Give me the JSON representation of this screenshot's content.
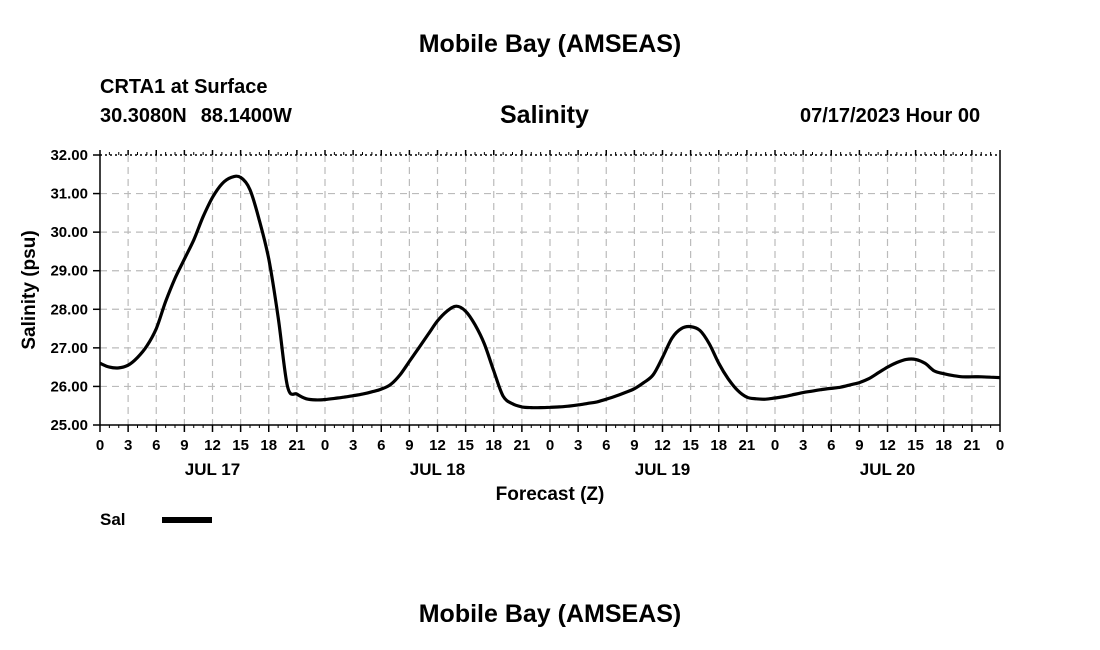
{
  "header": {
    "title": "Mobile Bay (AMSEAS)",
    "station": "CRTA1 at Surface",
    "latitude": "30.3080N",
    "longitude": "88.1400W",
    "run_time": "07/17/2023 Hour 00"
  },
  "footer": {
    "title": "Mobile Bay (AMSEAS)"
  },
  "chart_data": {
    "type": "line",
    "title": "Salinity",
    "xlabel": "Forecast (Z)",
    "ylabel": "Salinity (psu)",
    "ylim": [
      25.0,
      32.0
    ],
    "xlim": [
      0,
      96
    ],
    "y_ticks": [
      "25.00",
      "26.00",
      "27.00",
      "28.00",
      "29.00",
      "30.00",
      "31.00",
      "32.00"
    ],
    "x_tick_labels": [
      "0",
      "3",
      "6",
      "9",
      "12",
      "15",
      "18",
      "21",
      "0",
      "3",
      "6",
      "9",
      "12",
      "15",
      "18",
      "21",
      "0",
      "3",
      "6",
      "9",
      "12",
      "15",
      "18",
      "21",
      "0",
      "3",
      "6",
      "9",
      "12",
      "15",
      "18",
      "21",
      "0"
    ],
    "date_labels": [
      {
        "label": "JUL 17",
        "hour": 12
      },
      {
        "label": "JUL 18",
        "hour": 36
      },
      {
        "label": "JUL 19",
        "hour": 60
      },
      {
        "label": "JUL 20",
        "hour": 84
      }
    ],
    "grid": true,
    "legend_position": "bottom-left",
    "series": [
      {
        "name": "Sal",
        "color": "#000000",
        "x": [
          0,
          1,
          2,
          3,
          4,
          5,
          6,
          7,
          8,
          9,
          10,
          11,
          12,
          13,
          14,
          15,
          16,
          17,
          18,
          19,
          20,
          21,
          22,
          23,
          24,
          25,
          26,
          27,
          28,
          29,
          30,
          31,
          32,
          33,
          34,
          35,
          36,
          37,
          38,
          39,
          40,
          41,
          42,
          43,
          44,
          45,
          46,
          47,
          48,
          49,
          50,
          51,
          52,
          53,
          54,
          55,
          56,
          57,
          58,
          59,
          60,
          61,
          62,
          63,
          64,
          65,
          66,
          67,
          68,
          69,
          70,
          71,
          72,
          73,
          74,
          75,
          76,
          77,
          78,
          79,
          80,
          81,
          82,
          83,
          84,
          85,
          86,
          87,
          88,
          89,
          90,
          91,
          92,
          93,
          94,
          95,
          96
        ],
        "values": [
          26.6,
          26.5,
          26.48,
          26.55,
          26.75,
          27.05,
          27.5,
          28.2,
          28.8,
          29.3,
          29.8,
          30.4,
          30.9,
          31.25,
          31.42,
          31.42,
          31.1,
          30.3,
          29.3,
          27.8,
          26.0,
          25.8,
          25.68,
          25.65,
          25.66,
          25.69,
          25.72,
          25.76,
          25.8,
          25.86,
          25.93,
          26.05,
          26.3,
          26.65,
          27.0,
          27.35,
          27.7,
          27.95,
          28.08,
          27.95,
          27.6,
          27.1,
          26.4,
          25.75,
          25.55,
          25.47,
          25.45,
          25.45,
          25.46,
          25.47,
          25.49,
          25.52,
          25.56,
          25.6,
          25.67,
          25.75,
          25.84,
          25.94,
          26.1,
          26.3,
          26.75,
          27.25,
          27.5,
          27.55,
          27.45,
          27.1,
          26.6,
          26.2,
          25.9,
          25.72,
          25.68,
          25.67,
          25.7,
          25.74,
          25.79,
          25.84,
          25.88,
          25.92,
          25.95,
          25.98,
          26.04,
          26.1,
          26.2,
          26.35,
          26.5,
          26.62,
          26.7,
          26.7,
          26.6,
          26.4,
          26.33,
          26.28,
          26.25,
          26.25,
          26.25,
          26.24,
          26.23
        ]
      }
    ]
  }
}
